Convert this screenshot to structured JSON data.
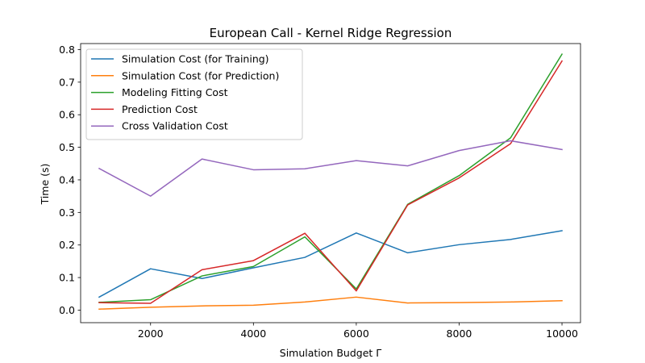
{
  "chart_data": {
    "type": "line",
    "title": "European Call - Kernel Ridge Regression",
    "xlabel": "Simulation Budget Γ",
    "ylabel": "Time (s)",
    "xlim": [
      640,
      10360
    ],
    "ylim": [
      -0.0385,
      0.8185
    ],
    "xticks": [
      2000,
      4000,
      6000,
      8000,
      10000
    ],
    "yticks": [
      0.0,
      0.1,
      0.2,
      0.3,
      0.4,
      0.5,
      0.6,
      0.7,
      0.8
    ],
    "xtick_labels": [
      "2000",
      "4000",
      "6000",
      "8000",
      "10000"
    ],
    "ytick_labels": [
      "0.0",
      "0.1",
      "0.2",
      "0.3",
      "0.4",
      "0.5",
      "0.6",
      "0.7",
      "0.8"
    ],
    "grid": false,
    "legend_position": "upper-left",
    "x": [
      1000,
      2000,
      3000,
      4000,
      5000,
      6000,
      7000,
      8000,
      9000,
      10000
    ],
    "series": [
      {
        "name": "Simulation Cost (for Training)",
        "color": "#1f77b4",
        "values": [
          0.04,
          0.127,
          0.097,
          0.13,
          0.162,
          0.237,
          0.176,
          0.201,
          0.217,
          0.244
        ]
      },
      {
        "name": "Simulation Cost (for Prediction)",
        "color": "#ff7f0e",
        "values": [
          0.003,
          0.009,
          0.013,
          0.015,
          0.025,
          0.04,
          0.022,
          0.023,
          0.025,
          0.029
        ]
      },
      {
        "name": "Modeling Fitting Cost",
        "color": "#2ca02c",
        "values": [
          0.024,
          0.032,
          0.105,
          0.134,
          0.225,
          0.065,
          0.325,
          0.413,
          0.529,
          0.786
        ]
      },
      {
        "name": "Prediction Cost",
        "color": "#d62728",
        "values": [
          0.023,
          0.021,
          0.124,
          0.152,
          0.236,
          0.059,
          0.323,
          0.406,
          0.511,
          0.765
        ]
      },
      {
        "name": "Cross Validation Cost",
        "color": "#9467bd",
        "values": [
          0.435,
          0.35,
          0.464,
          0.431,
          0.434,
          0.459,
          0.443,
          0.49,
          0.52,
          0.493
        ]
      }
    ]
  }
}
